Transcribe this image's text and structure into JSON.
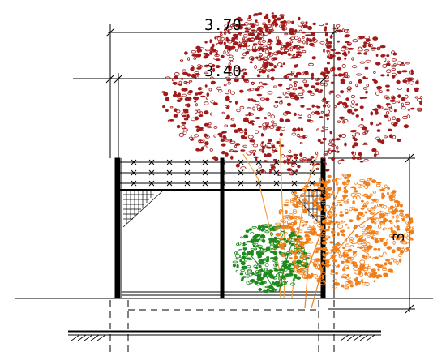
{
  "drawing": {
    "dimension_overall": "3.70",
    "dimension_inner": "3.40",
    "dimension_height": "3"
  },
  "colors": {
    "background": "#ffffff",
    "linework": "#000000",
    "tree_large": "#a11a1a",
    "tree_orange": "#f07f1c",
    "tree_green": "#1f8a1f",
    "trunk": "#f0a040"
  }
}
